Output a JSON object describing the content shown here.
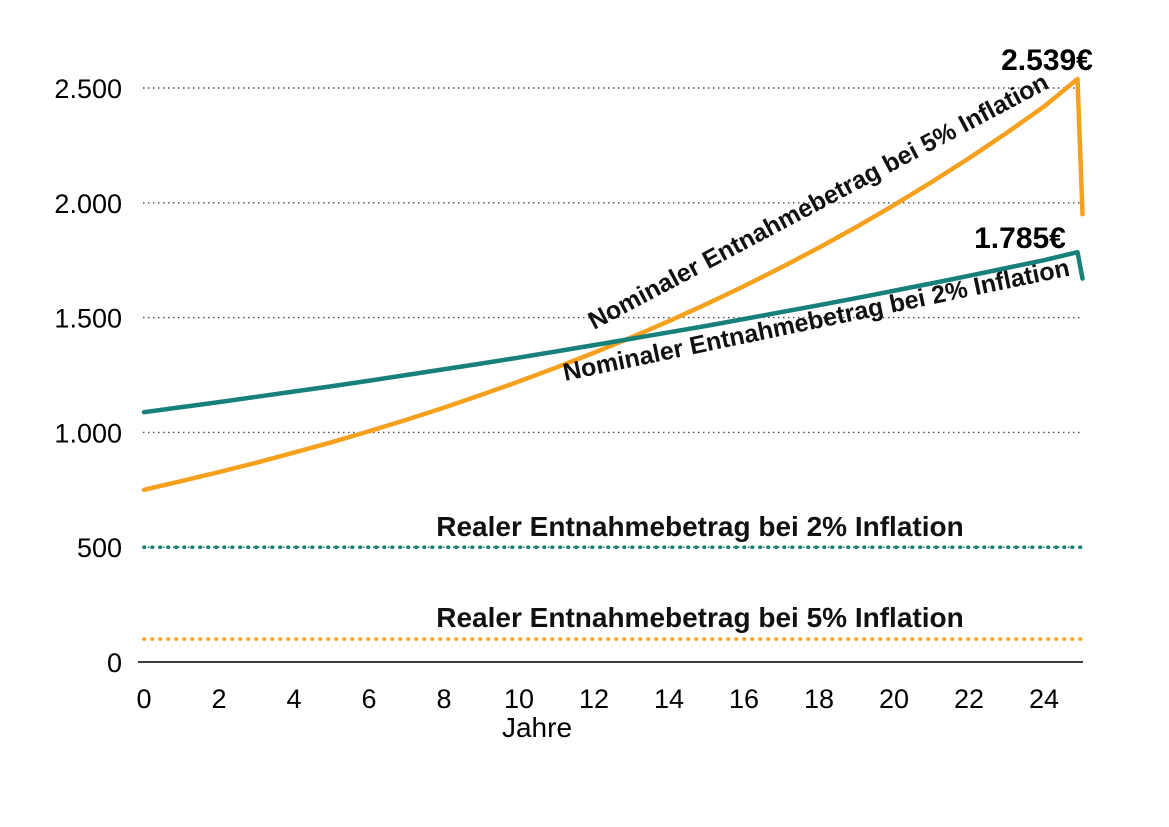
{
  "chart_data": {
    "type": "line",
    "title": "",
    "xlabel": "Jahre",
    "ylabel": "",
    "x_years": [
      0,
      1,
      2,
      3,
      4,
      5,
      6,
      7,
      8,
      9,
      10,
      11,
      12,
      13,
      14,
      15,
      16,
      17,
      18,
      19,
      20,
      21,
      22,
      23,
      24,
      25
    ],
    "xticks": [
      0,
      2,
      4,
      6,
      8,
      10,
      12,
      14,
      16,
      18,
      20,
      22,
      24
    ],
    "yticks": [
      {
        "value": 0,
        "label": "0"
      },
      {
        "value": 500,
        "label": "500"
      },
      {
        "value": 1000,
        "label": "1.000"
      },
      {
        "value": 1500,
        "label": "1.500"
      },
      {
        "value": 2000,
        "label": "2.000"
      },
      {
        "value": 2500,
        "label": "2.500"
      }
    ],
    "ylim": [
      0,
      2600
    ],
    "xlim": [
      0,
      25
    ],
    "grid": "horizontal-dotted",
    "legend": "labels-on-chart",
    "series": [
      {
        "name": "Nominaler Entnahmebetrag bei 5% Inflation",
        "style": "solid",
        "color": "#F6A11D",
        "start_value": 750,
        "annual_growth_pct": 5,
        "values": [
          750,
          788,
          827,
          868,
          912,
          957,
          1005,
          1055,
          1108,
          1164,
          1222,
          1283,
          1347,
          1414,
          1485,
          1559,
          1637,
          1719,
          1805,
          1895,
          1990,
          2090,
          2194,
          2304,
          2419,
          2539
        ],
        "peak_label": "2.539€",
        "peak_value": 2539,
        "value_after_final_drop": 1950
      },
      {
        "name": "Nominaler Entnahmebetrag bei 2% Inflation",
        "style": "solid",
        "color": "#17807A",
        "start_value": 1088,
        "annual_growth_pct": 2,
        "values": [
          1088,
          1110,
          1132,
          1155,
          1178,
          1201,
          1225,
          1250,
          1275,
          1300,
          1326,
          1353,
          1380,
          1408,
          1436,
          1464,
          1494,
          1524,
          1554,
          1585,
          1617,
          1649,
          1682,
          1716,
          1750,
          1785
        ],
        "peak_label": "1.785€",
        "peak_value": 1785,
        "value_after_final_drop": 1670
      },
      {
        "name": "Realer Entnahmebetrag bei 2% Inflation",
        "style": "dotted",
        "color": "#17807A",
        "constant_value": 500
      },
      {
        "name": "Realer Entnahmebetrag bei 5% Inflation",
        "style": "dotted",
        "color": "#F6A11D",
        "constant_value": 100
      }
    ],
    "colors": {
      "orange": "#F6A11D",
      "teal": "#17807A",
      "grid": "#4a4a4a",
      "axis": "#3c3c3c",
      "text": "#000000"
    }
  }
}
